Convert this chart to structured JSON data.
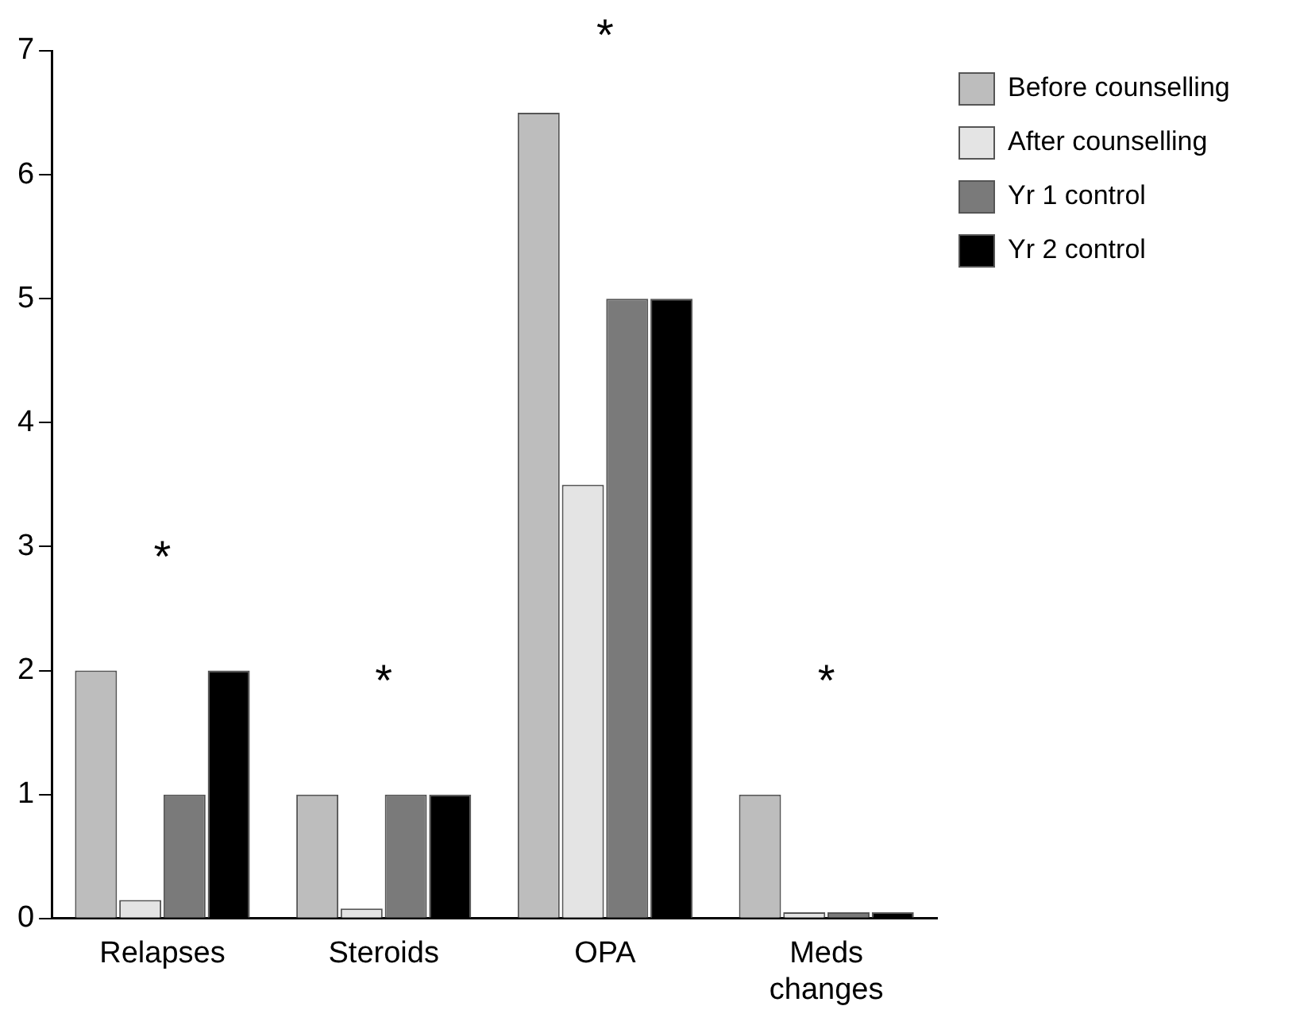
{
  "chart_data": {
    "type": "bar",
    "categories": [
      "Relapses",
      "Steroids",
      "OPA",
      "Meds changes"
    ],
    "series": [
      {
        "name": "Before counselling",
        "color": "#bdbdbd",
        "values": [
          2,
          1,
          6.5,
          1
        ]
      },
      {
        "name": "After counselling",
        "color": "#e4e4e4",
        "values": [
          0.15,
          0.08,
          3.5,
          0.05
        ]
      },
      {
        "name": "Yr 1 control",
        "color": "#7a7a7a",
        "values": [
          1,
          1,
          5,
          0.05
        ]
      },
      {
        "name": "Yr 2 control",
        "color": "#000000",
        "values": [
          2,
          1,
          5,
          0.05
        ]
      }
    ],
    "ylim": [
      0,
      7
    ],
    "yticks": [
      0,
      1,
      2,
      3,
      4,
      5,
      6,
      7
    ],
    "grid": false,
    "legend": "top right",
    "annotations": [
      "*",
      "*",
      "*",
      "*"
    ]
  }
}
